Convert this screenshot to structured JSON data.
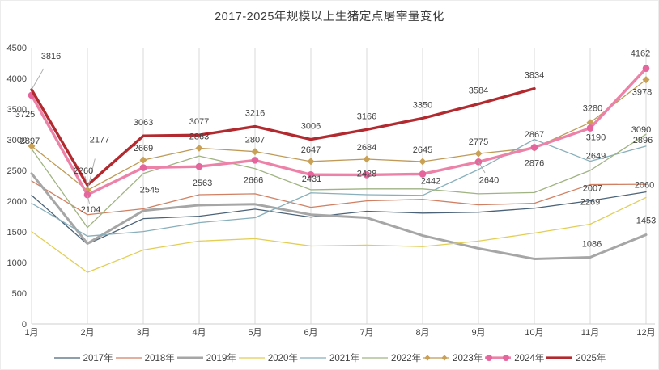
{
  "title": "2017-2025年规模以上生猪定点屠宰量变化",
  "chart_data": {
    "type": "line",
    "title": "2017-2025年规模以上生猪定点屠宰量变化",
    "categories": [
      "1月",
      "2月",
      "3月",
      "4月",
      "5月",
      "6月",
      "7月",
      "8月",
      "9月",
      "10月",
      "11月",
      "12月"
    ],
    "xlabel": "",
    "ylabel": "",
    "y_axis": {
      "min": 0,
      "max": 4500,
      "step": 500
    },
    "grid": "vertical-only",
    "legend_position": "bottom",
    "series": [
      {
        "name": "2017年",
        "color": "#4b6378",
        "width": 1.3,
        "marker": "none",
        "values": [
          2095,
          1300,
          1715,
          1755,
          1870,
          1740,
          1835,
          1805,
          1820,
          1885,
          2007,
          2150
        ],
        "labeled_points": [
          10
        ]
      },
      {
        "name": "2018年",
        "color": "#d08063",
        "width": 1.3,
        "marker": "none",
        "values": [
          2330,
          1780,
          1875,
          2105,
          2120,
          1900,
          2005,
          2030,
          1940,
          1965,
          2269,
          2275
        ],
        "labeled_points": [
          10
        ]
      },
      {
        "name": "2019年",
        "color": "#a6a6a6",
        "width": 3,
        "marker": "none",
        "values": [
          2450,
          1310,
          1845,
          1935,
          1950,
          1780,
          1730,
          1440,
          1230,
          1060,
          1086,
          1453
        ],
        "labeled_points": [
          10,
          11
        ]
      },
      {
        "name": "2020年",
        "color": "#e2ce55",
        "width": 1.3,
        "marker": "none",
        "values": [
          1505,
          840,
          1205,
          1350,
          1390,
          1270,
          1285,
          1260,
          1350,
          1480,
          1625,
          2060
        ],
        "labeled_points": [
          11
        ]
      },
      {
        "name": "2021年",
        "color": "#88afbb",
        "width": 1.3,
        "marker": "none",
        "values": [
          1965,
          1430,
          1505,
          1650,
          1730,
          2135,
          2105,
          2095,
          2515,
          3005,
          2649,
          2896
        ],
        "labeled_points": [
          10,
          11
        ]
      },
      {
        "name": "2022年",
        "color": "#9fb482",
        "width": 1.3,
        "marker": "none",
        "values": [
          2850,
          1570,
          2450,
          2735,
          2530,
          2185,
          2200,
          2200,
          2120,
          2140,
          2500,
          3090
        ],
        "labeled_points": [
          11
        ]
      },
      {
        "name": "2023年",
        "color": "#bf9a57",
        "width": 1.3,
        "marker": "diamond",
        "marker_color": "#c9a156",
        "values": [
          2897,
          2177,
          2669,
          2863,
          2807,
          2647,
          2684,
          2645,
          2775,
          2867,
          3280,
          3978
        ],
        "labeled_points": [
          0,
          1,
          2,
          3,
          4,
          5,
          6,
          7,
          8,
          9,
          10,
          11
        ]
      },
      {
        "name": "2024年",
        "color": "#ec82a8",
        "width": 3.4,
        "marker": "circle",
        "marker_color": "#e5659d",
        "values": [
          3725,
          2104,
          2545,
          2563,
          2666,
          2431,
          2428,
          2442,
          2640,
          2876,
          3190,
          4162
        ],
        "labeled_points": [
          0,
          1,
          2,
          3,
          4,
          5,
          6,
          7,
          8,
          9,
          10,
          11
        ]
      },
      {
        "name": "2025年",
        "color": "#b22a2f",
        "width": 3.4,
        "marker": "none",
        "values": [
          3816,
          2260,
          3063,
          3077,
          3216,
          3006,
          3166,
          3350,
          3584,
          3834
        ],
        "labeled_points": [
          0,
          1,
          2,
          3,
          4,
          5,
          6,
          7,
          8,
          9
        ]
      }
    ]
  }
}
